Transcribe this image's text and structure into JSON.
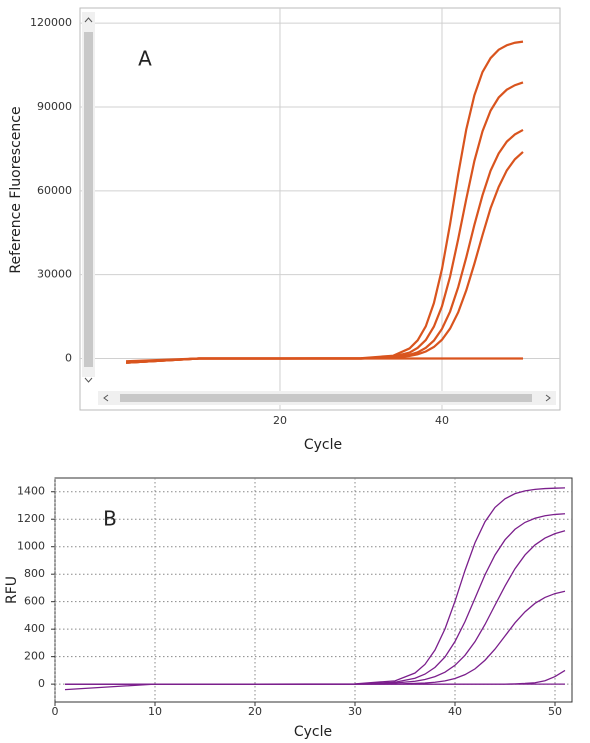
{
  "chart_data": [
    {
      "type": "line",
      "annotation": "A",
      "xlabel": "Cycle",
      "ylabel": "Reference Fluorescence",
      "x": [
        1,
        10,
        20,
        30,
        34,
        36,
        37,
        38,
        39,
        40,
        41,
        42,
        43,
        44,
        45,
        46,
        47,
        48,
        49,
        50
      ],
      "series": [
        {
          "color": "#d9541e",
          "values": [
            -1500,
            0,
            0,
            100,
            1000,
            3600,
            6500,
            11500,
            19800,
            32000,
            48100,
            65900,
            82000,
            94200,
            102500,
            107500,
            110500,
            112100,
            113000,
            113400
          ]
        },
        {
          "color": "#d9541e",
          "values": [
            -1500,
            0,
            0,
            0,
            700,
            2100,
            3800,
            6600,
            11400,
            18700,
            29300,
            42700,
            57100,
            70700,
            81300,
            88700,
            93400,
            96200,
            97800,
            98800
          ]
        },
        {
          "color": "#d9541e",
          "values": [
            -1500,
            0,
            0,
            0,
            400,
            1300,
            2200,
            3800,
            6400,
            10600,
            16800,
            25500,
            36200,
            47800,
            58400,
            67200,
            73400,
            77600,
            80200,
            81800
          ]
        },
        {
          "color": "#d9541e",
          "values": [
            -1500,
            0,
            0,
            0,
            300,
            900,
            1500,
            2500,
            4100,
            6700,
            10700,
            16500,
            24400,
            33900,
            44100,
            53800,
            61400,
            67300,
            71300,
            73900
          ]
        },
        {
          "color": "#d9541e",
          "values": [
            -1000,
            0,
            0,
            0,
            0,
            0,
            0,
            0,
            0,
            0,
            0,
            0,
            0,
            0,
            0,
            0,
            0,
            0,
            0,
            0
          ]
        }
      ],
      "xlim": [
        -3.7,
        52.1
      ],
      "xticks": [
        20,
        40
      ],
      "ylim": [
        -12000,
        124000
      ],
      "yticks": [
        0,
        30000,
        60000,
        90000,
        120000
      ],
      "grid": true
    },
    {
      "type": "line",
      "annotation": "B",
      "xlabel": "Cycle",
      "ylabel": "RFU",
      "x": [
        1,
        10,
        20,
        30,
        34,
        36,
        37,
        38,
        39,
        40,
        41,
        42,
        43,
        44,
        45,
        46,
        47,
        48,
        49,
        50,
        51
      ],
      "series": [
        {
          "color": "#7b1f8c",
          "values": [
            0,
            0,
            0,
            2,
            24,
            81,
            144,
            248,
            402,
            603,
            827,
            1029,
            1182,
            1286,
            1349,
            1386,
            1406,
            1417,
            1423,
            1426,
            1428
          ]
        },
        {
          "color": "#7b1f8c",
          "values": [
            0,
            0,
            0,
            0,
            14,
            43,
            73,
            122,
            198,
            310,
            455,
            625,
            796,
            940,
            1050,
            1127,
            1177,
            1207,
            1225,
            1235,
            1240
          ]
        },
        {
          "color": "#7b1f8c",
          "values": [
            0,
            0,
            0,
            0,
            8,
            21,
            34,
            55,
            87,
            137,
            210,
            309,
            434,
            575,
            714,
            840,
            940,
            1013,
            1063,
            1095,
            1116
          ]
        },
        {
          "color": "#7b1f8c",
          "values": [
            0,
            0,
            0,
            0,
            1,
            5,
            8,
            14,
            24,
            41,
            69,
            111,
            174,
            255,
            350,
            446,
            526,
            588,
            631,
            659,
            676
          ]
        },
        {
          "color": "#7b1f8c",
          "values": [
            0,
            0,
            0,
            0,
            0,
            0,
            0,
            0,
            0,
            0,
            0,
            0,
            0,
            0,
            0,
            2,
            5,
            10,
            25,
            55,
            100
          ]
        },
        {
          "color": "#7b1f8c",
          "values": [
            -40,
            0,
            0,
            0,
            0,
            0,
            0,
            0,
            0,
            0,
            0,
            0,
            0,
            0,
            0,
            0,
            0,
            0,
            0,
            0,
            0
          ]
        }
      ],
      "xlim": [
        0,
        51.7
      ],
      "xticks": [
        0,
        10,
        20,
        30,
        40,
        50
      ],
      "ylim": [
        -130,
        1500
      ],
      "yticks": [
        0,
        200,
        400,
        600,
        800,
        1000,
        1200,
        1400
      ],
      "grid": true
    }
  ]
}
